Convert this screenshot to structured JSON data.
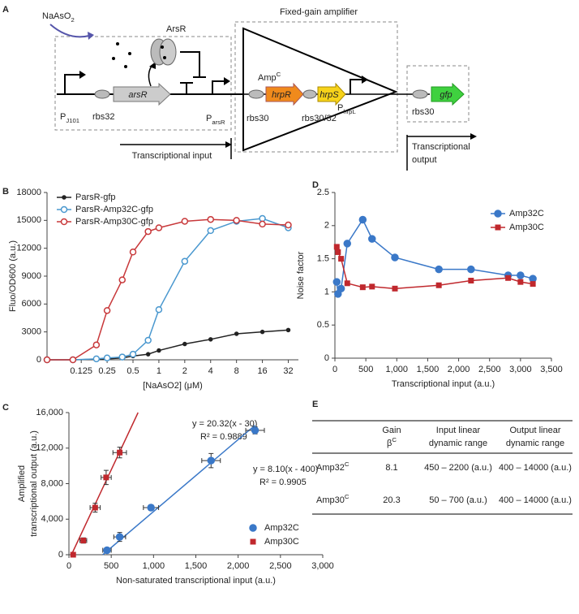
{
  "panel_labels": [
    "A",
    "B",
    "C",
    "D",
    "E"
  ],
  "diagram": {
    "title": "Fixed-gain amplifier",
    "inducer": {
      "text": "NaAsO",
      "sub": "2"
    },
    "repressor": "ArsR",
    "amplifier": {
      "text": "Amp",
      "sup": "C"
    },
    "promoter_1": {
      "text": "P",
      "sub": "J101"
    },
    "rbs_1": "rbs32",
    "gene_1": "arsR",
    "promoter_2": {
      "text": "P",
      "sub": "arsR"
    },
    "rbs_2": "rbs30",
    "gene_2": "hrpR",
    "gene_3": "hrpS",
    "rbs_3": "rbs30/32",
    "promoter_3": {
      "text": "P",
      "sub": "hrpL"
    },
    "rbs_4": "rbs30",
    "gene_4": "gfp",
    "input": "Transcriptional input",
    "output": [
      "Transcriptional",
      "output"
    ]
  },
  "chart_data": [
    {
      "type": "line",
      "x_label": "[NaAsO2] (μM)",
      "y_label": "Fluo/OD600 (a.u.)",
      "x_scale": "log",
      "x": [
        0.05,
        0.1,
        0.1875,
        0.25,
        0.375,
        0.5,
        0.75,
        1,
        2,
        4,
        8,
        16,
        32
      ],
      "xlim": [
        0.05,
        42
      ],
      "xticks": [
        0.125,
        0.25,
        0.5,
        1,
        2,
        4,
        8,
        16,
        32
      ],
      "ylim": [
        0,
        18000
      ],
      "yticks": [
        0,
        3000,
        6000,
        9000,
        12000,
        15000,
        18000
      ],
      "legend": "top-left",
      "series": [
        {
          "name": "ParsR-gfp",
          "color": "#222222",
          "marker": "dot",
          "values": [
            0,
            0,
            50,
            100,
            200,
            400,
            600,
            1000,
            1700,
            2200,
            2800,
            3000,
            3200
          ]
        },
        {
          "name": "ParsR-Amp32C-gfp",
          "color": "#4a98cf",
          "marker": "circle-open",
          "values": [
            0,
            0,
            100,
            200,
            300,
            600,
            2100,
            5400,
            10600,
            13900,
            14900,
            15200,
            14200
          ]
        },
        {
          "name": "ParsR-Amp30C-gfp",
          "color": "#c8383a",
          "marker": "circle-open",
          "values": [
            0,
            0,
            1600,
            5300,
            8600,
            11600,
            13800,
            14200,
            14900,
            15100,
            15000,
            14600,
            14500
          ]
        }
      ]
    },
    {
      "type": "scatter",
      "x_label": "Non-saturated transcriptional input (a.u.)",
      "y_label": [
        "Amplified",
        "transcriptional output (a.u.)"
      ],
      "xlim": [
        0,
        3000
      ],
      "xticks": [
        0,
        500,
        {
          "value": 1000,
          "label": "1,000"
        },
        {
          "value": 1500,
          "label": "1,500"
        },
        {
          "value": 2000,
          "label": "2,000"
        },
        {
          "value": 2500,
          "label": "2,500"
        },
        {
          "value": 3000,
          "label": "3,000"
        }
      ],
      "ylim": [
        0,
        16000
      ],
      "yticks": [
        0,
        {
          "value": 4000,
          "label": "4,000"
        },
        {
          "value": 8000,
          "label": "8,000"
        },
        {
          "value": 12000,
          "label": "12,000"
        },
        {
          "value": 16000,
          "label": "16,000"
        }
      ],
      "legend": "bottom-right",
      "annotations": [
        "y = 20.32(x - 30)",
        "R² = 0.9889",
        "y = 8.10(x - 400)",
        "R² = 0.9905"
      ],
      "series": [
        {
          "name": "Amp32C",
          "color": "#3a78c8",
          "marker": "circle",
          "x": [
            450,
            600,
            970,
            1680,
            2200
          ],
          "values": [
            500,
            2000,
            5300,
            10600,
            14000
          ],
          "x_errors": [
            50,
            70,
            90,
            110,
            110
          ],
          "y_errors": [
            200,
            500,
            300,
            800,
            400
          ],
          "fit": {
            "x": [
              400,
              2200
            ],
            "y": [
              0,
              14580
            ]
          }
        },
        {
          "name": "Amp30C",
          "color": "#c0282d",
          "marker": "square",
          "x": [
            50,
            170,
            310,
            440,
            600
          ],
          "values": [
            0,
            1600,
            5300,
            8700,
            11500
          ],
          "x_errors": [
            0,
            40,
            60,
            60,
            80
          ],
          "y_errors": [
            0,
            300,
            500,
            800,
            600
          ],
          "fit": {
            "x": [
              30,
              817
            ],
            "y": [
              0,
              16000
            ]
          }
        }
      ]
    },
    {
      "type": "line",
      "x_label": "Transcriptional input (a.u.)",
      "y_label": "Noise factor",
      "xlim": [
        0,
        3500
      ],
      "xticks": [
        0,
        500,
        {
          "value": 1000,
          "label": "1,000"
        },
        {
          "value": 1500,
          "label": "1,500"
        },
        {
          "value": 2000,
          "label": "2,000"
        },
        {
          "value": 2500,
          "label": "2,500"
        },
        {
          "value": 3000,
          "label": "3,000"
        },
        {
          "value": 3500,
          "label": "3,500"
        }
      ],
      "ylim": [
        0,
        2.5
      ],
      "yticks": [
        0,
        0.5,
        1,
        1.5,
        2,
        2.5
      ],
      "legend": "top-right",
      "series": [
        {
          "name": "Amp32C",
          "color": "#3a78c8",
          "marker": "circle",
          "x": [
            30,
            50,
            100,
            200,
            450,
            600,
            970,
            1680,
            2200,
            2800,
            3000,
            3200
          ],
          "values": [
            1.15,
            0.97,
            1.05,
            1.73,
            2.09,
            1.8,
            1.52,
            1.34,
            1.34,
            1.25,
            1.25,
            1.2
          ]
        },
        {
          "name": "Amp30C",
          "color": "#c0282d",
          "marker": "square",
          "x": [
            30,
            50,
            100,
            200,
            450,
            600,
            970,
            1680,
            2200,
            2800,
            3000,
            3200
          ],
          "values": [
            1.68,
            1.6,
            1.5,
            1.13,
            1.07,
            1.08,
            1.05,
            1.1,
            1.17,
            1.21,
            1.15,
            1.12
          ]
        }
      ]
    }
  ],
  "table": {
    "columns": [
      [
        "Gain",
        {
          "text": "β",
          "sup": "C"
        }
      ],
      [
        "Input linear",
        "dynamic range"
      ],
      [
        "Output linear",
        "dynamic range"
      ]
    ],
    "rows": [
      [
        {
          "text": "Amp32",
          "sup": "C"
        },
        "8.1",
        "450 – 2200 (a.u.)",
        "400 – 14000 (a.u.)"
      ],
      [
        {
          "text": "Amp30",
          "sup": "C"
        },
        "20.3",
        "50 – 700 (a.u.)",
        "400 – 14000 (a.u.)"
      ]
    ]
  }
}
